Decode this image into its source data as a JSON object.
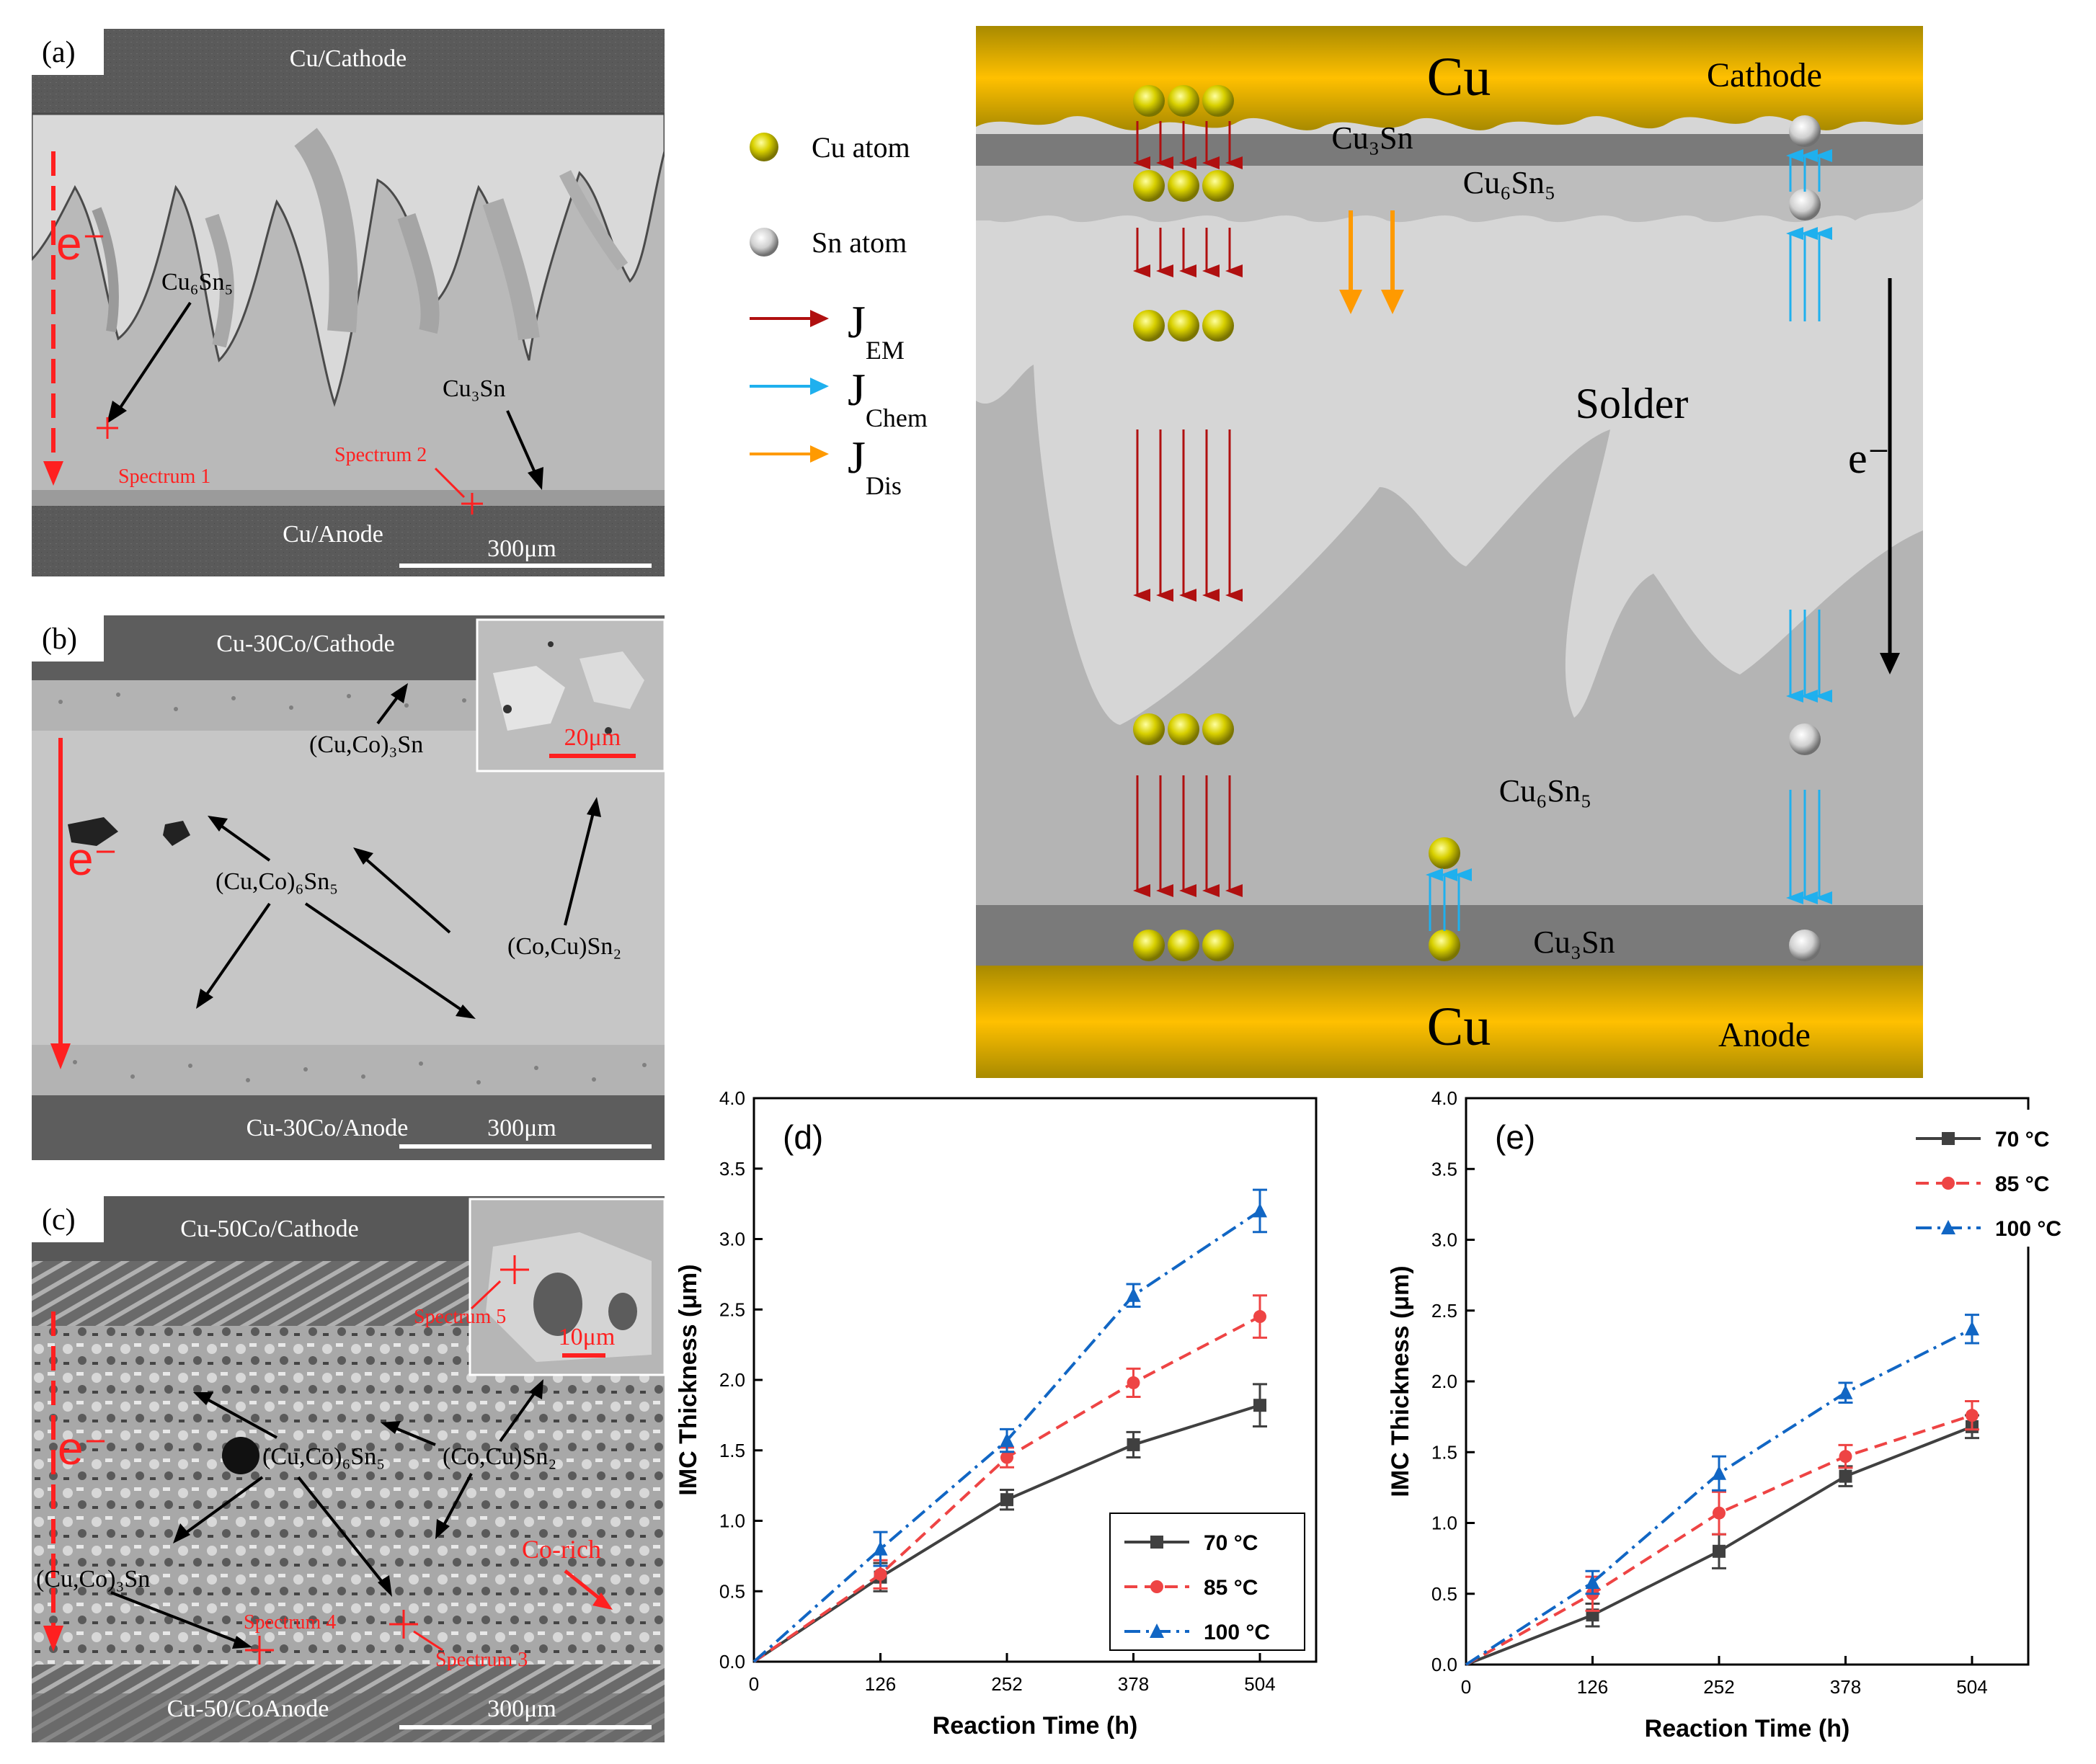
{
  "panel_a": {
    "tag": "(a)",
    "top_electrode": "Cu/Cathode",
    "bottom_electrode": "Cu/Anode",
    "electron_label": "e⁻",
    "phase_upper": "Cu₆Sn₅",
    "phase_lower": "Cu₃Sn",
    "spectrum_1": "Spectrum 1",
    "spectrum_2": "Spectrum 2",
    "scale": "300μm"
  },
  "panel_b": {
    "tag": "(b)",
    "top_electrode": "Cu-30Co/Cathode",
    "bottom_electrode": "Cu-30Co/Anode",
    "electron_label": "e⁻",
    "phase_1": "(Cu,Co)₃Sn",
    "phase_2": "(Cu,Co)₆Sn₅",
    "phase_3": "(Co,Cu)Sn₂",
    "inset_scale": "20μm",
    "scale": "300μm"
  },
  "panel_c": {
    "tag": "(c)",
    "top_electrode": "Cu-50Co/Cathode",
    "bottom_electrode": "Cu-50/CoAnode",
    "electron_label": "e⁻",
    "phase_1": "(Cu,Co)₆Sn₅",
    "phase_2": "(Co,Cu)Sn₂",
    "phase_3": "(Cu,Co)₃Sn",
    "co_rich": "Co-rich",
    "spectrum_3": "Spectrum 3",
    "spectrum_4": "Spectrum 4",
    "spectrum_5": "Spectrum 5",
    "inset_scale": "10μm",
    "scale": "300μm"
  },
  "schematic": {
    "legend_cu_atom": "Cu atom",
    "legend_sn_atom": "Sn atom",
    "legend_j": "J",
    "legend_em_sub": "EM",
    "legend_chem_sub": "Chem",
    "legend_dis_sub": "Dis",
    "top_cu": "Cu",
    "cathode": "Cathode",
    "cu3sn_top": "Cu₃Sn",
    "cu6sn5_top": "Cu₆Sn₅",
    "solder": "Solder",
    "electron": "e⁻",
    "cu6sn5_bottom": "Cu₆Sn₅",
    "cu3sn_bottom": "Cu₃Sn",
    "bottom_cu": "Cu",
    "anode": "Anode"
  },
  "chart_data": [
    {
      "type": "line",
      "panel": "(d)",
      "xlabel": "Reaction Time (h)",
      "ylabel": "IMC Thickness (μm)",
      "x": [
        0,
        126,
        252,
        378,
        504
      ],
      "x_ticks": [
        "0",
        "126",
        "252",
        "378",
        "504"
      ],
      "y_ticks": [
        "0.0",
        "0.5",
        "1.0",
        "1.5",
        "2.0",
        "2.5",
        "3.0",
        "3.5",
        "4.0"
      ],
      "ylim": [
        0,
        4.0
      ],
      "legend_position": "bottom-right",
      "series": [
        {
          "name": "70 °C",
          "values": [
            0,
            0.6,
            1.15,
            1.54,
            1.82
          ],
          "errors": [
            0,
            0.1,
            0.07,
            0.09,
            0.15
          ],
          "color": "#404040",
          "marker": "square",
          "dash": "solid"
        },
        {
          "name": "85 °C",
          "values": [
            0,
            0.62,
            1.45,
            1.98,
            2.45
          ],
          "errors": [
            0,
            0.1,
            0.07,
            0.1,
            0.15
          ],
          "color": "#ee4444",
          "marker": "circle",
          "dash": "dash"
        },
        {
          "name": "100 °C",
          "values": [
            0,
            0.8,
            1.57,
            2.6,
            3.2
          ],
          "errors": [
            0,
            0.12,
            0.08,
            0.08,
            0.15
          ],
          "color": "#1166c4",
          "marker": "triangle",
          "dash": "dashdot"
        }
      ]
    },
    {
      "type": "line",
      "panel": "(e)",
      "xlabel": "Reaction Time (h)",
      "ylabel": "IMC Thickness (μm)",
      "x": [
        0,
        126,
        252,
        378,
        504
      ],
      "x_ticks": [
        "0",
        "126",
        "252",
        "378",
        "504"
      ],
      "y_ticks": [
        "0.0",
        "0.5",
        "1.0",
        "1.5",
        "2.0",
        "2.5",
        "3.0",
        "3.5",
        "4.0"
      ],
      "ylim": [
        0,
        4.0
      ],
      "legend_position": "top-left",
      "series": [
        {
          "name": "70 °C",
          "values": [
            0,
            0.35,
            0.8,
            1.33,
            1.68
          ],
          "errors": [
            0,
            0.08,
            0.12,
            0.07,
            0.08
          ],
          "color": "#404040",
          "marker": "square",
          "dash": "solid"
        },
        {
          "name": "85 °C",
          "values": [
            0,
            0.5,
            1.07,
            1.47,
            1.76
          ],
          "errors": [
            0,
            0.12,
            0.15,
            0.08,
            0.1
          ],
          "color": "#ee4444",
          "marker": "circle",
          "dash": "dash"
        },
        {
          "name": "100 °C",
          "values": [
            0,
            0.58,
            1.35,
            1.92,
            2.37
          ],
          "errors": [
            0,
            0.08,
            0.12,
            0.07,
            0.1
          ],
          "color": "#1166c4",
          "marker": "triangle",
          "dash": "dashdot"
        }
      ]
    }
  ]
}
